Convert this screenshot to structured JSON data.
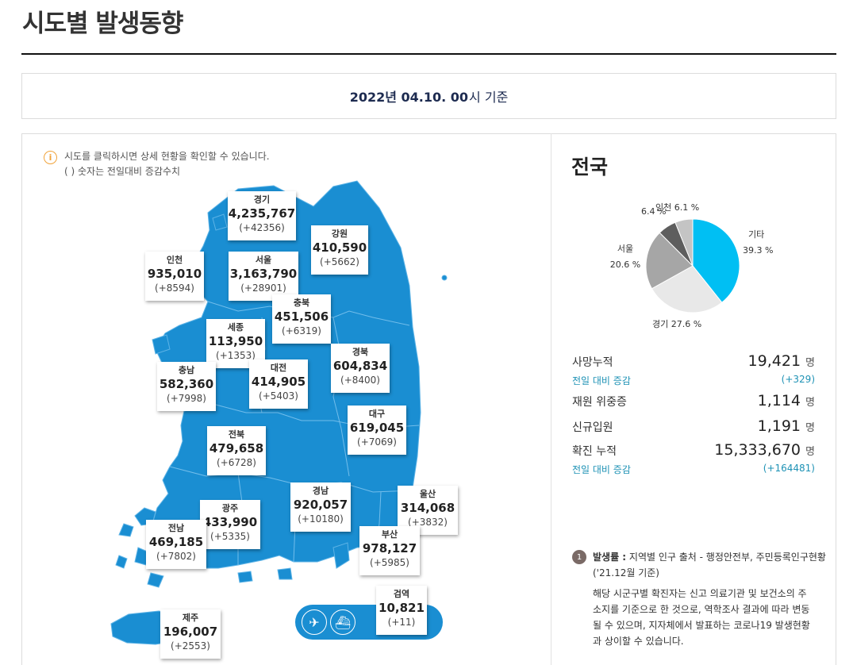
{
  "page": {
    "title": "시도별 발생동향",
    "date_bold": "2022년 04.10. 00",
    "date_rest": "시 기준"
  },
  "notice": {
    "line1": "시도를 클릭하시면 상세 현황을 확인할 수 있습니다.",
    "line2": "( ) 숫자는 전일대비 증감수치"
  },
  "colors": {
    "map_fill": "#1a8ed2",
    "accent_teal": "#1e92b5"
  },
  "regions": [
    {
      "name": "경기",
      "total": "4,235,767",
      "inc": "(+42356)"
    },
    {
      "name": "강원",
      "total": "410,590",
      "inc": "(+5662)"
    },
    {
      "name": "인천",
      "total": "935,010",
      "inc": "(+8594)"
    },
    {
      "name": "서울",
      "total": "3,163,790",
      "inc": "(+28901)"
    },
    {
      "name": "충북",
      "total": "451,506",
      "inc": "(+6319)"
    },
    {
      "name": "세종",
      "total": "113,950",
      "inc": "(+1353)"
    },
    {
      "name": "경북",
      "total": "604,834",
      "inc": "(+8400)"
    },
    {
      "name": "충남",
      "total": "582,360",
      "inc": "(+7998)"
    },
    {
      "name": "대전",
      "total": "414,905",
      "inc": "(+5403)"
    },
    {
      "name": "대구",
      "total": "619,045",
      "inc": "(+7069)"
    },
    {
      "name": "전북",
      "total": "479,658",
      "inc": "(+6728)"
    },
    {
      "name": "경남",
      "total": "920,057",
      "inc": "(+10180)"
    },
    {
      "name": "울산",
      "total": "314,068",
      "inc": "(+3832)"
    },
    {
      "name": "광주",
      "total": "433,990",
      "inc": "(+5335)"
    },
    {
      "name": "전남",
      "total": "469,185",
      "inc": "(+7802)"
    },
    {
      "name": "부산",
      "total": "978,127",
      "inc": "(+5985)"
    },
    {
      "name": "검역",
      "total": "10,821",
      "inc": "(+11)"
    },
    {
      "name": "제주",
      "total": "196,007",
      "inc": "(+2553)"
    }
  ],
  "transport": {
    "icons": [
      "airplane-icon",
      "ship-icon"
    ]
  },
  "nation": {
    "title": "전국",
    "stats": {
      "death_label": "사망누적",
      "death_value": "19,421",
      "unit": "명",
      "death_sub_label": "전일 대비 증감",
      "death_sub_value": "(+329)",
      "severe_label": "재원 위중증",
      "severe_value": "1,114",
      "new_label": "신규입원",
      "new_value": "1,191",
      "confirmed_label": "확진 누적",
      "confirmed_value": "15,333,670",
      "confirmed_sub_label": "전일 대비 증감",
      "confirmed_sub_value": "(+164481)"
    }
  },
  "chart_data": {
    "type": "pie",
    "slices": [
      {
        "label": "기타",
        "value": 39.3,
        "text": "39.3 %",
        "color": "#00bff3"
      },
      {
        "label": "경기",
        "value": 27.6,
        "text": "경기 27.6 %",
        "color": "#e8e8e8"
      },
      {
        "label": "서울",
        "value": 20.6,
        "text": "20.6 %",
        "color": "#a6a6a6"
      },
      {
        "label": "",
        "value": 6.4,
        "text": "6.4 %",
        "color": "#5e5e5e"
      },
      {
        "label": "인천",
        "value": 6.1,
        "text": "인천 6.1 %",
        "color": "#c4c4c4"
      }
    ]
  },
  "note": {
    "num": "1",
    "head_bold": "발생률 :",
    "head_rest": " 지역별 인구 출처 - 행정안전부, 주민등록인구현황",
    "sub": "('21.12월 기준)",
    "body": "해당 시군구별 확진자는 신고 의료기관 및 보건소의 주소지를 기준으로 한 것으로, 역학조사 결과에 따라 변동될 수 있으며, 지자체에서 발표하는 코로나19 발생현황과 상이할 수 있습니다."
  }
}
